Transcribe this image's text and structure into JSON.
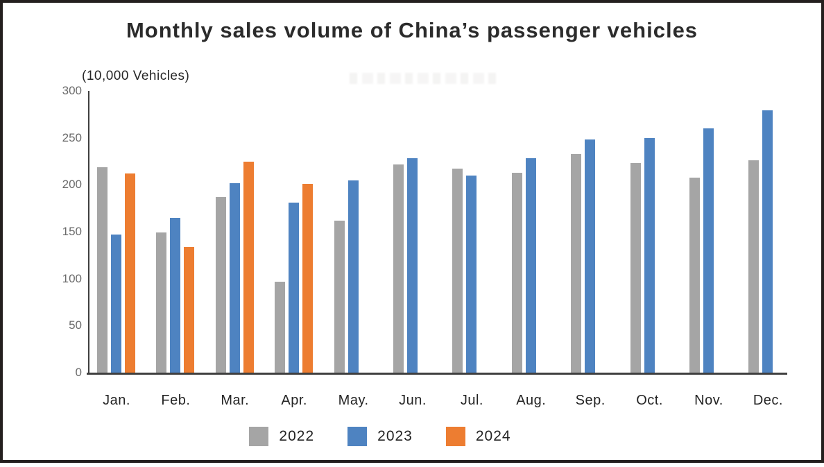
{
  "chart": {
    "title": "Monthly sales volume of China’s passenger vehicles",
    "unit_label": "(10,000 Vehicles)"
  },
  "chart_data": {
    "type": "bar",
    "title": "Monthly sales volume of China’s passenger vehicles",
    "unit": "10,000 Vehicles",
    "categories": [
      "Jan.",
      "Feb.",
      "Mar.",
      "Apr.",
      "May.",
      "Jun.",
      "Jul.",
      "Aug.",
      "Sep.",
      "Oct.",
      "Nov.",
      "Dec."
    ],
    "series": [
      {
        "name": "2022",
        "color": "#A5A5A5",
        "values": [
          219,
          149,
          187,
          97,
          162,
          222,
          217,
          213,
          233,
          223,
          208,
          226
        ]
      },
      {
        "name": "2023",
        "color": "#4E83C1",
        "values": [
          147,
          165,
          202,
          181,
          205,
          228,
          210,
          228,
          248,
          250,
          260,
          279
        ]
      },
      {
        "name": "2024",
        "color": "#ED7D31",
        "values": [
          212,
          134,
          225,
          201,
          null,
          null,
          null,
          null,
          null,
          null,
          null,
          null
        ]
      }
    ],
    "ylim": [
      0,
      300
    ],
    "y_ticks": [
      300,
      250,
      200,
      150,
      100,
      50,
      0
    ],
    "grid": false,
    "legend_position": "bottom",
    "axis_color": "#3F3F3F",
    "tick_label_color": "#6A6A6A"
  }
}
